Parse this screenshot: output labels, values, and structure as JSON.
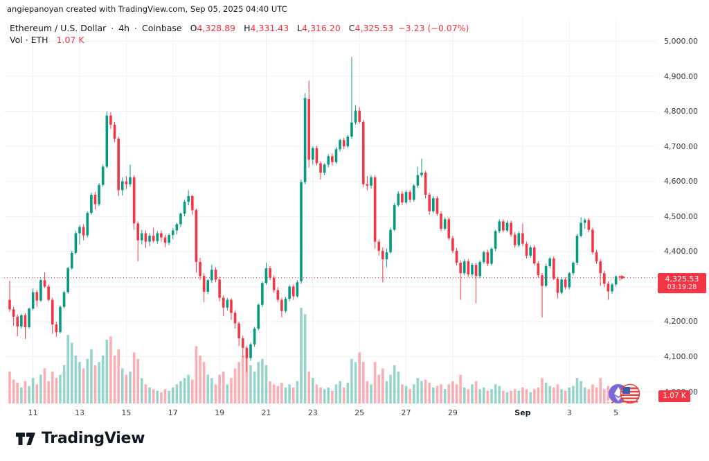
{
  "attribution": "angiepanoyan created with TradingView.com, Sep 05, 2025 04:40 UTC",
  "legend": {
    "symbol": "Ethereum / U.S. Dollar",
    "sep1": "·",
    "interval": "4h",
    "sep2": "·",
    "exchange": "Coinbase",
    "o_label": "O",
    "o_value": "4,328.89",
    "h_label": "H",
    "h_value": "4,331.43",
    "l_label": "L",
    "l_value": "4,316.20",
    "c_label": "C",
    "c_value": "4,325.53",
    "change": "−3.23 (−0.07%)",
    "vol_label": "Vol · ETH",
    "vol_value": "1.07 K"
  },
  "price_tag": {
    "price": "4,325.53",
    "countdown": "03:19:28"
  },
  "volume_tag": {
    "text": "1.07 K"
  },
  "logo": {
    "text": "TradingView"
  },
  "colors": {
    "up": "#089981",
    "down": "#f23645",
    "volume_up": "rgba(8,153,129,0.42)",
    "volume_down": "rgba(242,54,69,0.40)",
    "grid": "#eef0f4",
    "price_line": "#f23645",
    "axis_text": "#363a45",
    "text": "#131722"
  },
  "price_scale": {
    "labels": [
      {
        "text": "5,000.00",
        "price": 5000
      },
      {
        "text": "4,900.00",
        "price": 4900
      },
      {
        "text": "4,800.00",
        "price": 4800
      },
      {
        "text": "4,700.00",
        "price": 4700
      },
      {
        "text": "4,600.00",
        "price": 4600
      },
      {
        "text": "4,500.00",
        "price": 4500
      },
      {
        "text": "4,400.00",
        "price": 4400
      },
      {
        "text": "4,200.00",
        "price": 4200
      },
      {
        "text": "4,100.00",
        "price": 4100
      },
      {
        "text": "4,000.00",
        "price": 4000
      }
    ]
  },
  "time_scale": {
    "labels": [
      {
        "text": "11",
        "i": 6,
        "bold": false
      },
      {
        "text": "13",
        "i": 18,
        "bold": false
      },
      {
        "text": "15",
        "i": 30,
        "bold": false
      },
      {
        "text": "17",
        "i": 42,
        "bold": false
      },
      {
        "text": "19",
        "i": 54,
        "bold": false
      },
      {
        "text": "21",
        "i": 66,
        "bold": false
      },
      {
        "text": "23",
        "i": 78,
        "bold": false
      },
      {
        "text": "25",
        "i": 90,
        "bold": false
      },
      {
        "text": "27",
        "i": 102,
        "bold": false
      },
      {
        "text": "29",
        "i": 114,
        "bold": false
      },
      {
        "text": "Sep",
        "i": 132,
        "bold": true
      },
      {
        "text": "3",
        "i": 144,
        "bold": false
      },
      {
        "text": "5",
        "i": 156,
        "bold": false
      }
    ]
  },
  "chart_data": {
    "type": "candlestick",
    "title": "Ethereum / U.S. Dollar",
    "symbol": "ETH/USD",
    "exchange": "Coinbase",
    "interval": "4h",
    "start_utc": "2025-08-10 00:00",
    "end_utc": "2025-09-05 04:00",
    "bars_per_day": 6,
    "y_axis": {
      "min": 4000,
      "max": 5000,
      "gridline_step": 100
    },
    "volume_unit": "K ETH",
    "current": {
      "open": 4328.89,
      "high": 4331.43,
      "low": 4316.2,
      "close": 4325.53,
      "change": -3.23,
      "change_pct": -0.07,
      "volume_k": 1.07,
      "countdown": "03:19:28"
    },
    "columns": [
      "open",
      "high",
      "low",
      "close",
      "volume_kETH"
    ],
    "candles": [
      [
        4262,
        4316,
        4228,
        4235,
        20
      ],
      [
        4235,
        4242,
        4188,
        4214,
        15
      ],
      [
        4214,
        4220,
        4158,
        4186,
        13
      ],
      [
        4186,
        4222,
        4180,
        4218,
        10
      ],
      [
        4218,
        4224,
        4150,
        4184,
        14
      ],
      [
        4184,
        4240,
        4180,
        4237,
        11
      ],
      [
        4237,
        4294,
        4232,
        4284,
        16
      ],
      [
        4284,
        4290,
        4242,
        4260,
        12
      ],
      [
        4260,
        4322,
        4256,
        4318,
        18
      ],
      [
        4318,
        4341,
        4296,
        4300,
        22
      ],
      [
        4300,
        4306,
        4258,
        4262,
        14
      ],
      [
        4262,
        4268,
        4165,
        4192,
        20
      ],
      [
        4192,
        4200,
        4157,
        4170,
        16
      ],
      [
        4170,
        4246,
        4166,
        4242,
        18
      ],
      [
        4242,
        4288,
        4238,
        4284,
        24
      ],
      [
        4284,
        4356,
        4280,
        4352,
        43
      ],
      [
        4352,
        4402,
        4348,
        4396,
        38
      ],
      [
        4396,
        4458,
        4392,
        4452,
        30
      ],
      [
        4452,
        4476,
        4420,
        4470,
        26
      ],
      [
        4470,
        4478,
        4432,
        4446,
        22
      ],
      [
        4446,
        4515,
        4440,
        4510,
        28
      ],
      [
        4510,
        4568,
        4505,
        4562,
        34
      ],
      [
        4562,
        4570,
        4520,
        4535,
        24
      ],
      [
        4535,
        4595,
        4530,
        4590,
        26
      ],
      [
        4590,
        4648,
        4585,
        4642,
        30
      ],
      [
        4642,
        4800,
        4638,
        4788,
        40
      ],
      [
        4788,
        4798,
        4750,
        4762,
        42
      ],
      [
        4762,
        4770,
        4712,
        4722,
        30
      ],
      [
        4722,
        4728,
        4558,
        4575,
        34
      ],
      [
        4575,
        4612,
        4560,
        4600,
        22
      ],
      [
        4600,
        4615,
        4578,
        4592,
        18
      ],
      [
        4592,
        4648,
        4585,
        4612,
        20
      ],
      [
        4612,
        4618,
        4462,
        4480,
        32
      ],
      [
        4480,
        4486,
        4372,
        4432,
        28
      ],
      [
        4432,
        4462,
        4420,
        4452,
        16
      ],
      [
        4452,
        4460,
        4410,
        4428,
        12
      ],
      [
        4428,
        4452,
        4415,
        4445,
        10
      ],
      [
        4445,
        4468,
        4425,
        4430,
        9
      ],
      [
        4430,
        4458,
        4422,
        4452,
        8
      ],
      [
        4452,
        4460,
        4428,
        4440,
        7
      ],
      [
        4440,
        4448,
        4412,
        4425,
        9
      ],
      [
        4425,
        4452,
        4418,
        4447,
        8
      ],
      [
        4447,
        4466,
        4435,
        4460,
        10
      ],
      [
        4460,
        4482,
        4448,
        4478,
        12
      ],
      [
        4478,
        4512,
        4470,
        4508,
        14
      ],
      [
        4508,
        4548,
        4500,
        4542,
        16
      ],
      [
        4542,
        4575,
        4532,
        4558,
        18
      ],
      [
        4558,
        4562,
        4505,
        4518,
        15
      ],
      [
        4518,
        4522,
        4340,
        4370,
        36
      ],
      [
        4370,
        4382,
        4318,
        4330,
        30
      ],
      [
        4330,
        4338,
        4255,
        4285,
        26
      ],
      [
        4285,
        4322,
        4278,
        4318,
        18
      ],
      [
        4318,
        4362,
        4310,
        4348,
        16
      ],
      [
        4348,
        4355,
        4312,
        4320,
        12
      ],
      [
        4320,
        4328,
        4258,
        4268,
        18
      ],
      [
        4268,
        4275,
        4215,
        4240,
        20
      ],
      [
        4240,
        4268,
        4232,
        4262,
        12
      ],
      [
        4262,
        4266,
        4205,
        4225,
        16
      ],
      [
        4225,
        4232,
        4180,
        4195,
        22
      ],
      [
        4195,
        4200,
        4130,
        4152,
        26
      ],
      [
        4152,
        4160,
        4098,
        4125,
        30
      ],
      [
        4125,
        4130,
        4056,
        4096,
        34
      ],
      [
        4096,
        4140,
        4088,
        4135,
        24
      ],
      [
        4135,
        4185,
        4128,
        4180,
        20
      ],
      [
        4180,
        4252,
        4175,
        4248,
        26
      ],
      [
        4248,
        4315,
        4242,
        4310,
        28
      ],
      [
        4310,
        4368,
        4305,
        4352,
        24
      ],
      [
        4352,
        4358,
        4318,
        4325,
        14
      ],
      [
        4325,
        4332,
        4282,
        4290,
        12
      ],
      [
        4290,
        4298,
        4255,
        4262,
        11
      ],
      [
        4262,
        4268,
        4212,
        4230,
        13
      ],
      [
        4230,
        4270,
        4225,
        4265,
        10
      ],
      [
        4265,
        4305,
        4258,
        4300,
        12
      ],
      [
        4300,
        4306,
        4262,
        4272,
        10
      ],
      [
        4272,
        4318,
        4268,
        4312,
        14
      ],
      [
        4315,
        4605,
        4308,
        4598,
        60
      ],
      [
        4598,
        4852,
        4592,
        4838,
        56
      ],
      [
        4835,
        4888,
        4640,
        4662,
        20
      ],
      [
        4662,
        4700,
        4648,
        4695,
        16
      ],
      [
        4695,
        4702,
        4645,
        4652,
        12
      ],
      [
        4652,
        4658,
        4605,
        4625,
        10
      ],
      [
        4625,
        4652,
        4618,
        4648,
        9
      ],
      [
        4648,
        4678,
        4640,
        4672,
        10
      ],
      [
        4672,
        4680,
        4645,
        4655,
        8
      ],
      [
        4655,
        4698,
        4650,
        4692,
        12
      ],
      [
        4692,
        4722,
        4685,
        4718,
        14
      ],
      [
        4718,
        4725,
        4692,
        4700,
        10
      ],
      [
        4700,
        4732,
        4695,
        4728,
        13
      ],
      [
        4728,
        4955,
        4722,
        4768,
        28
      ],
      [
        4768,
        4818,
        4762,
        4802,
        26
      ],
      [
        4802,
        4812,
        4765,
        4770,
        32
      ],
      [
        4770,
        4776,
        4584,
        4592,
        26
      ],
      [
        4592,
        4615,
        4575,
        4588,
        14
      ],
      [
        4588,
        4618,
        4580,
        4612,
        12
      ],
      [
        4612,
        4618,
        4408,
        4428,
        26
      ],
      [
        4428,
        4434,
        4388,
        4402,
        18
      ],
      [
        4402,
        4412,
        4312,
        4378,
        22
      ],
      [
        4378,
        4408,
        4355,
        4398,
        14
      ],
      [
        4398,
        4468,
        4394,
        4462,
        18
      ],
      [
        4462,
        4538,
        4458,
        4532,
        24
      ],
      [
        4532,
        4572,
        4528,
        4565,
        20
      ],
      [
        4565,
        4572,
        4532,
        4540,
        12
      ],
      [
        4540,
        4575,
        4535,
        4570,
        11
      ],
      [
        4570,
        4576,
        4540,
        4548,
        9
      ],
      [
        4548,
        4592,
        4542,
        4588,
        12
      ],
      [
        4588,
        4642,
        4582,
        4618,
        16
      ],
      [
        4618,
        4665,
        4612,
        4625,
        14
      ],
      [
        4625,
        4630,
        4552,
        4562,
        15
      ],
      [
        4562,
        4568,
        4505,
        4515,
        13
      ],
      [
        4515,
        4558,
        4510,
        4552,
        10
      ],
      [
        4552,
        4558,
        4502,
        4508,
        11
      ],
      [
        4508,
        4515,
        4458,
        4465,
        12
      ],
      [
        4465,
        4498,
        4460,
        4492,
        9
      ],
      [
        4492,
        4498,
        4432,
        4438,
        12
      ],
      [
        4438,
        4445,
        4395,
        4402,
        14
      ],
      [
        4402,
        4410,
        4360,
        4368,
        12
      ],
      [
        4368,
        4375,
        4262,
        4338,
        18
      ],
      [
        4338,
        4378,
        4332,
        4372,
        10
      ],
      [
        4372,
        4378,
        4328,
        4335,
        9
      ],
      [
        4335,
        4368,
        4328,
        4362,
        12
      ],
      [
        4362,
        4368,
        4252,
        4330,
        14
      ],
      [
        4330,
        4375,
        4325,
        4370,
        9
      ],
      [
        4370,
        4402,
        4365,
        4398,
        10
      ],
      [
        4398,
        4405,
        4358,
        4365,
        8
      ],
      [
        4365,
        4412,
        4360,
        4408,
        9
      ],
      [
        4408,
        4462,
        4402,
        4458,
        12
      ],
      [
        4458,
        4492,
        4452,
        4486,
        11
      ],
      [
        4486,
        4492,
        4455,
        4460,
        8
      ],
      [
        4460,
        4488,
        4455,
        4482,
        7
      ],
      [
        4482,
        4488,
        4442,
        4448,
        8
      ],
      [
        4448,
        4455,
        4410,
        4418,
        9
      ],
      [
        4418,
        4458,
        4412,
        4452,
        8
      ],
      [
        4452,
        4480,
        4415,
        4422,
        10
      ],
      [
        4422,
        4428,
        4380,
        4388,
        9
      ],
      [
        4388,
        4418,
        4382,
        4412,
        7
      ],
      [
        4412,
        4418,
        4360,
        4366,
        9
      ],
      [
        4366,
        4372,
        4325,
        4332,
        10
      ],
      [
        4332,
        4338,
        4212,
        4302,
        16
      ],
      [
        4302,
        4365,
        4298,
        4358,
        13
      ],
      [
        4358,
        4385,
        4352,
        4380,
        11
      ],
      [
        4380,
        4386,
        4318,
        4322,
        10
      ],
      [
        4322,
        4328,
        4266,
        4282,
        12
      ],
      [
        4282,
        4326,
        4278,
        4320,
        9
      ],
      [
        4320,
        4326,
        4292,
        4298,
        8
      ],
      [
        4298,
        4342,
        4292,
        4338,
        10
      ],
      [
        4338,
        4372,
        4332,
        4368,
        11
      ],
      [
        4368,
        4450,
        4362,
        4445,
        16
      ],
      [
        4445,
        4498,
        4440,
        4482,
        14
      ],
      [
        4482,
        4495,
        4465,
        4490,
        10
      ],
      [
        4490,
        4496,
        4455,
        4462,
        9
      ],
      [
        4462,
        4468,
        4392,
        4398,
        12
      ],
      [
        4398,
        4405,
        4365,
        4372,
        10
      ],
      [
        4372,
        4378,
        4302,
        4338,
        16
      ],
      [
        4338,
        4345,
        4298,
        4308,
        9
      ],
      [
        4308,
        4315,
        4262,
        4286,
        11
      ],
      [
        4286,
        4310,
        4280,
        4306,
        7
      ],
      [
        4306,
        4332,
        4300,
        4329,
        6
      ],
      [
        4328.89,
        4331.43,
        4316.2,
        4325.53,
        1.07
      ]
    ]
  }
}
